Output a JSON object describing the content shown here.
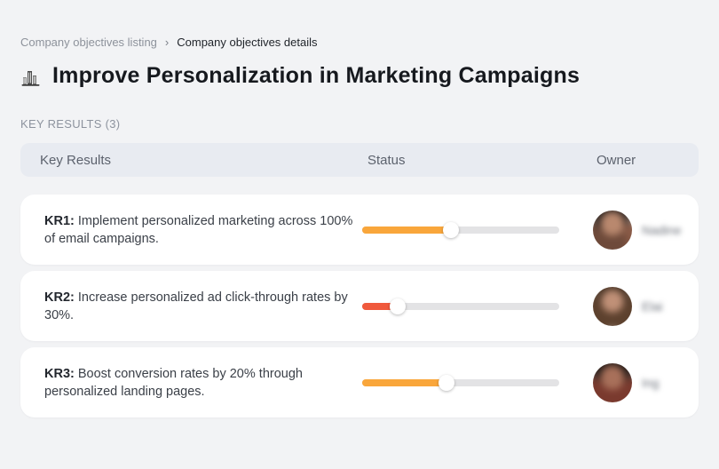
{
  "breadcrumb": {
    "items": [
      {
        "label": "Company objectives listing"
      },
      {
        "label": "Company objectives details"
      }
    ],
    "separator": "›"
  },
  "header": {
    "icon": "city-buildings-icon",
    "title": "Improve Personalization in Marketing Campaigns"
  },
  "section": {
    "label": "KEY RESULTS (3)"
  },
  "table": {
    "columns": {
      "key_results": "Key Results",
      "status": "Status",
      "owner": "Owner"
    },
    "rows": [
      {
        "kr_label": "KR1:",
        "kr_text": "Implement personalized marketing across 100% of email campaigns.",
        "progress_percent": 45,
        "progress_color": "#F9A63B",
        "owner": {
          "name": "Nadine"
        }
      },
      {
        "kr_label": "KR2:",
        "kr_text": "Increase personalized ad click-through rates by 30%.",
        "progress_percent": 18,
        "progress_color": "#F0593C",
        "owner": {
          "name": "Elai"
        }
      },
      {
        "kr_label": "KR3:",
        "kr_text": "Boost conversion rates by 20% through personalized landing pages.",
        "progress_percent": 43,
        "progress_color": "#F9A63B",
        "owner": {
          "name": "Ing"
        }
      }
    ]
  },
  "colors": {
    "page_background": "#F2F3F5",
    "card_background": "#FFFFFF",
    "table_header_background": "#E8EBF1",
    "progress_track": "#E3E3E5",
    "progress_orange": "#F9A63B",
    "progress_red": "#F0593C"
  }
}
